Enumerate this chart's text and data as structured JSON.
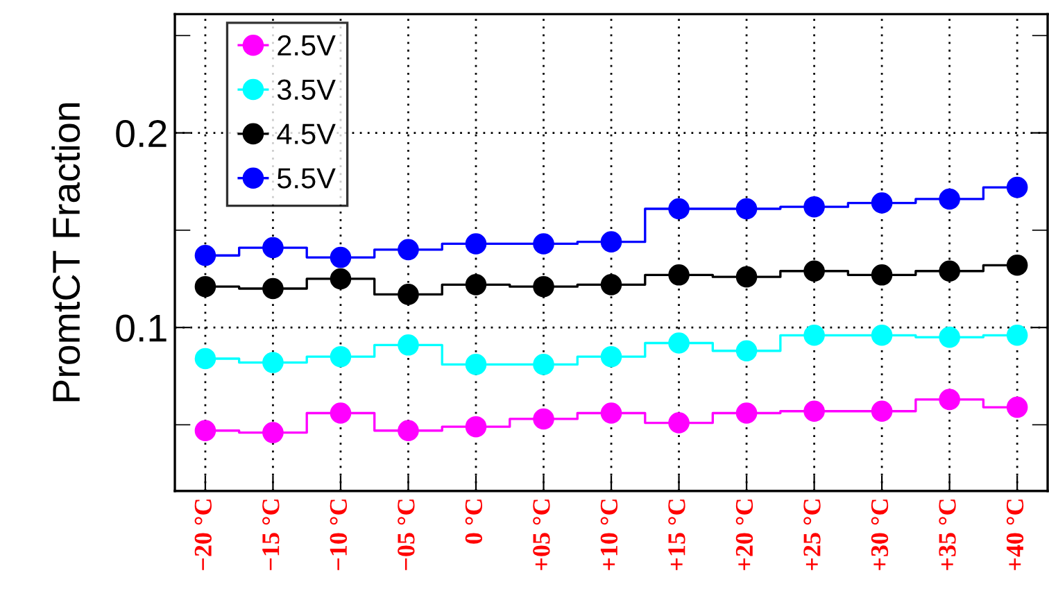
{
  "chart_data": {
    "type": "step",
    "ylabel": "PromtCT Fraction",
    "categories": [
      "−20 °C",
      "−15 °C",
      "−10 °C",
      "−05 °C",
      "0 °C",
      "+05 °C",
      "+10 °C",
      "+15 °C",
      "+20 °C",
      "+25 °C",
      "+30 °C",
      "+35 °C",
      "+40 °C"
    ],
    "series": [
      {
        "name": "2.5V",
        "color": "#ff00ff",
        "values": [
          0.047,
          0.046,
          0.056,
          0.047,
          0.049,
          0.053,
          0.056,
          0.051,
          0.056,
          0.057,
          0.057,
          0.063,
          0.059
        ]
      },
      {
        "name": "3.5V",
        "color": "#00ffff",
        "values": [
          0.084,
          0.082,
          0.085,
          0.091,
          0.081,
          0.081,
          0.085,
          0.092,
          0.088,
          0.096,
          0.096,
          0.095,
          0.096
        ]
      },
      {
        "name": "4.5V",
        "color": "#000000",
        "values": [
          0.121,
          0.12,
          0.125,
          0.117,
          0.122,
          0.121,
          0.122,
          0.127,
          0.126,
          0.129,
          0.127,
          0.129,
          0.132
        ]
      },
      {
        "name": "5.5V",
        "color": "#0000ff",
        "values": [
          0.137,
          0.141,
          0.136,
          0.14,
          0.143,
          0.143,
          0.144,
          0.161,
          0.161,
          0.162,
          0.164,
          0.166,
          0.172
        ]
      }
    ],
    "ylim": [
      0.016,
      0.261
    ],
    "yticks": [
      {
        "value": 0.05,
        "label": null
      },
      0.1,
      {
        "value": 0.15,
        "label": null
      },
      0.2,
      {
        "value": 0.25,
        "label": null
      }
    ],
    "grid": true,
    "legend": "top left",
    "marker": "circle",
    "line_style": "solid"
  }
}
